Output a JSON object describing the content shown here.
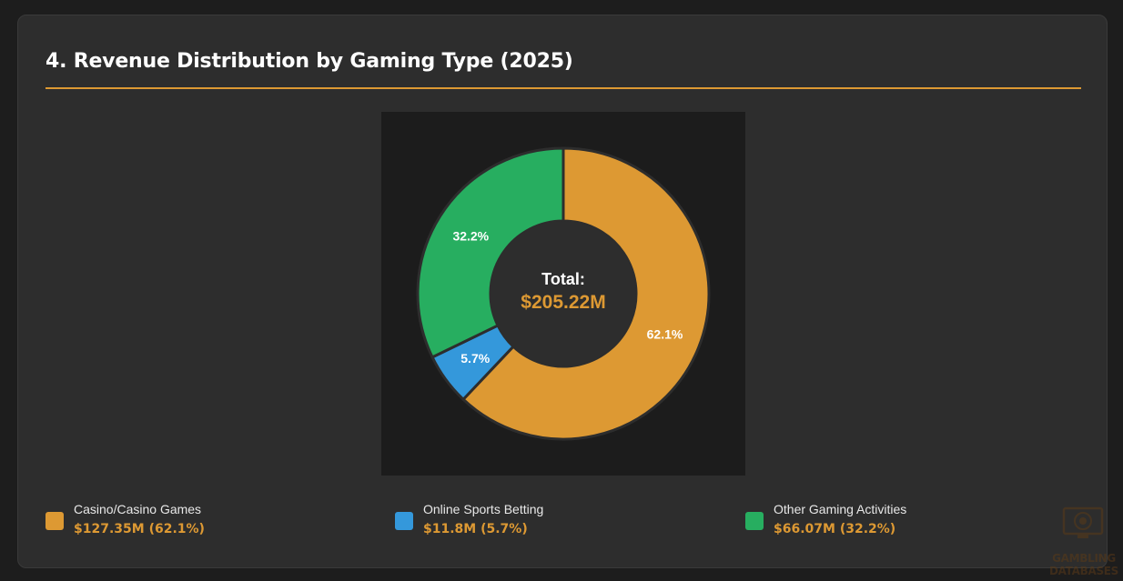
{
  "card": {
    "title": "4. Revenue Distribution by Gaming Type (2025)"
  },
  "colors": {
    "accent": "#dd9933",
    "casino": "#dd9933",
    "sports": "#3498db",
    "other": "#27ae60",
    "center": "#2d2d2d",
    "chart_bg": "#1c1c1c"
  },
  "chart_data": {
    "type": "pie",
    "variant": "doughnut",
    "categories": [
      "Casino/Casino Games",
      "Online Sports Betting",
      "Other Gaming Activities"
    ],
    "values": [
      127.35,
      11.8,
      66.07
    ],
    "percent_labels": [
      "62.1%",
      "5.7%",
      "32.2%"
    ],
    "colors": [
      "#dd9933",
      "#3498db",
      "#27ae60"
    ],
    "center_label": "Total:",
    "center_value": "$205.22M"
  },
  "legend": [
    {
      "name": "Casino/Casino Games",
      "value": "$127.35M (62.1%)",
      "color": "#dd9933"
    },
    {
      "name": "Online Sports Betting",
      "value": "$11.8M (5.7%)",
      "color": "#3498db"
    },
    {
      "name": "Other Gaming Activities",
      "value": "$66.07M (32.2%)",
      "color": "#27ae60"
    }
  ],
  "watermark": {
    "line1": "GAMBLING",
    "line2": "DATABASES"
  }
}
